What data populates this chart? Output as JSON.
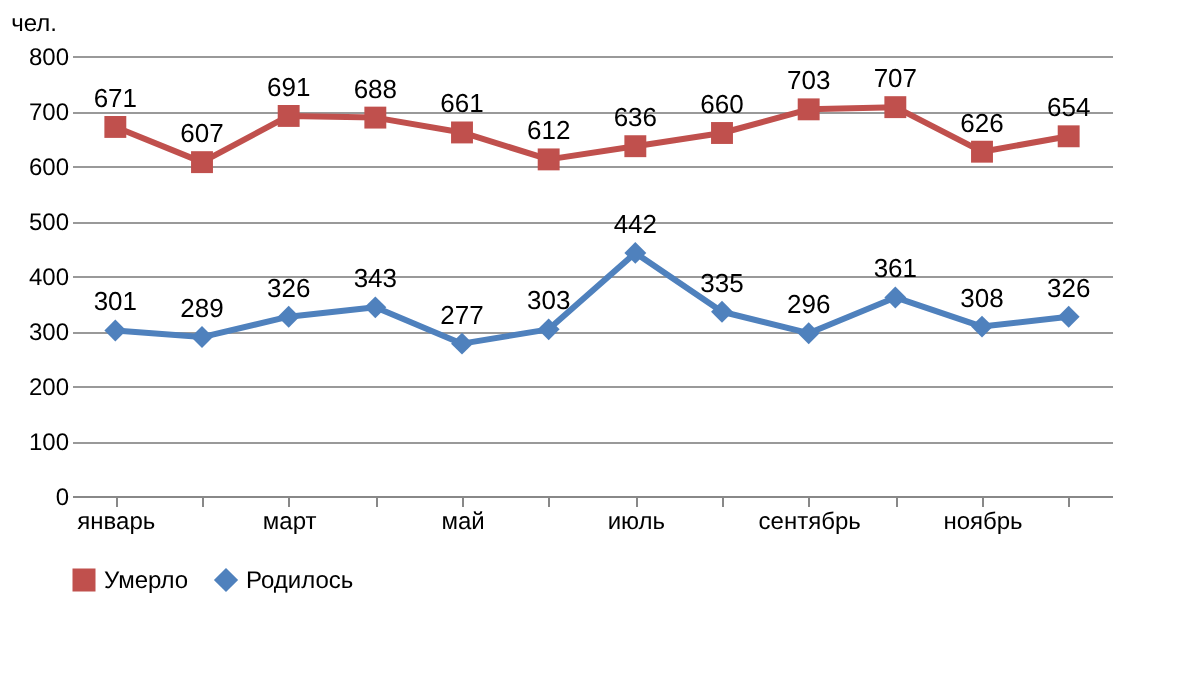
{
  "chart_data": {
    "type": "line",
    "categories": [
      "январь",
      null,
      "март",
      null,
      "май",
      null,
      "июль",
      null,
      "сентябрь",
      null,
      "ноябрь",
      null
    ],
    "series": [
      {
        "name": "Умерло",
        "color": "#c0504d",
        "marker": "square",
        "values": [
          671,
          607,
          691,
          688,
          661,
          612,
          636,
          660,
          703,
          707,
          626,
          654
        ]
      },
      {
        "name": "Родилось",
        "color": "#4f81bd",
        "marker": "diamond",
        "values": [
          301,
          289,
          326,
          343,
          277,
          303,
          442,
          335,
          296,
          361,
          308,
          326
        ]
      }
    ],
    "ylabel": "чел.",
    "ylim": [
      0,
      800
    ],
    "yticks": [
      0,
      100,
      200,
      300,
      400,
      500,
      600,
      700,
      800
    ],
    "grid": "y",
    "legend": "bottom",
    "data_labels": true,
    "line_style": "solid"
  }
}
